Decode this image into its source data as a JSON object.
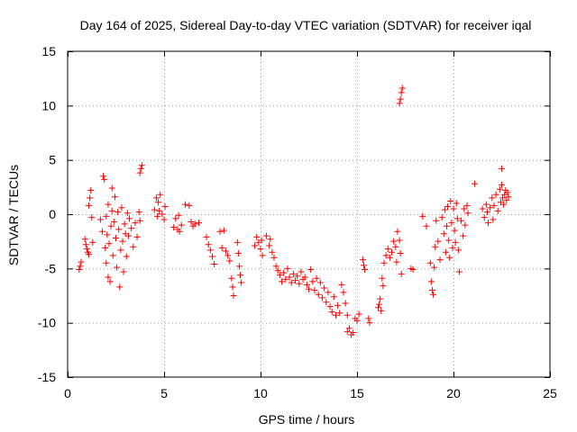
{
  "chart_data": {
    "type": "scatter",
    "title": "Day 164 of 2025, Sidereal Day-to-day VTEC variation (SDTVAR) for receiver iqal",
    "xlabel": "GPS time / hours",
    "ylabel": "SDTVAR / TECUs",
    "xlim": [
      0,
      25
    ],
    "ylim": [
      -15,
      15
    ],
    "xticks": [
      0,
      5,
      10,
      15,
      20,
      25
    ],
    "yticks": [
      -15,
      -10,
      -5,
      0,
      5,
      10,
      15
    ],
    "xtick_labels": [
      "0",
      "5",
      "10",
      "15",
      "20",
      "25"
    ],
    "ytick_labels": [
      "-15",
      "-10",
      "-5",
      "0",
      "5",
      "10",
      "15"
    ],
    "grid": true,
    "marker": "plus",
    "marker_color": "#ff0000",
    "series": [
      {
        "name": "SDTVAR",
        "points": [
          [
            0.6,
            -5.1
          ],
          [
            0.65,
            -4.8
          ],
          [
            0.7,
            -4.4
          ],
          [
            0.9,
            -2.3
          ],
          [
            0.95,
            -2.8
          ],
          [
            1.0,
            -3.2
          ],
          [
            1.05,
            -3.5
          ],
          [
            1.1,
            -3.7
          ],
          [
            1.1,
            0.8
          ],
          [
            1.15,
            1.5
          ],
          [
            1.2,
            2.2
          ],
          [
            1.25,
            -0.3
          ],
          [
            1.3,
            -2.6
          ],
          [
            1.7,
            -0.5
          ],
          [
            1.8,
            -1.6
          ],
          [
            1.85,
            3.5
          ],
          [
            1.9,
            3.2
          ],
          [
            1.95,
            -3.1
          ],
          [
            2.0,
            -4.5
          ],
          [
            2.0,
            -0.2
          ],
          [
            2.05,
            -1.9
          ],
          [
            2.1,
            -5.8
          ],
          [
            2.1,
            0.9
          ],
          [
            2.15,
            -2.7
          ],
          [
            2.2,
            -6.2
          ],
          [
            2.25,
            -1.1
          ],
          [
            2.3,
            2.4
          ],
          [
            2.3,
            0.3
          ],
          [
            2.35,
            -3.8
          ],
          [
            2.4,
            -0.7
          ],
          [
            2.45,
            1.6
          ],
          [
            2.5,
            -2.2
          ],
          [
            2.55,
            -4.9
          ],
          [
            2.6,
            0.2
          ],
          [
            2.65,
            -1.4
          ],
          [
            2.7,
            -6.7
          ],
          [
            2.75,
            -3.3
          ],
          [
            2.8,
            0.6
          ],
          [
            2.85,
            -2.5
          ],
          [
            2.9,
            -5.3
          ],
          [
            2.95,
            -0.9
          ],
          [
            3.0,
            -1.8
          ],
          [
            3.05,
            -3.9
          ],
          [
            3.1,
            0.1
          ],
          [
            3.15,
            -2.0
          ],
          [
            3.2,
            -0.4
          ],
          [
            3.3,
            -1.3
          ],
          [
            3.4,
            -3.0
          ],
          [
            3.5,
            -0.8
          ],
          [
            3.6,
            -2.1
          ],
          [
            3.7,
            0.2
          ],
          [
            3.75,
            -0.6
          ],
          [
            3.75,
            3.8
          ],
          [
            3.8,
            4.2
          ],
          [
            3.85,
            4.5
          ],
          [
            4.5,
            0.4
          ],
          [
            4.6,
            1.5
          ],
          [
            4.65,
            -0.2
          ],
          [
            4.7,
            1.1
          ],
          [
            4.75,
            0.3
          ],
          [
            4.8,
            1.8
          ],
          [
            4.9,
            0.0
          ],
          [
            5.0,
            -0.5
          ],
          [
            5.05,
            0.7
          ],
          [
            5.5,
            -1.2
          ],
          [
            5.6,
            -0.4
          ],
          [
            5.7,
            -1.4
          ],
          [
            5.75,
            -0.1
          ],
          [
            5.8,
            -1.6
          ],
          [
            5.9,
            -1.0
          ],
          [
            6.1,
            0.9
          ],
          [
            6.3,
            0.8
          ],
          [
            6.4,
            -0.7
          ],
          [
            6.5,
            -1.1
          ],
          [
            6.6,
            -0.9
          ],
          [
            6.8,
            -0.8
          ],
          [
            7.2,
            -2.1
          ],
          [
            7.3,
            -2.8
          ],
          [
            7.4,
            -3.3
          ],
          [
            7.5,
            -3.9
          ],
          [
            7.6,
            -4.6
          ],
          [
            7.9,
            -1.6
          ],
          [
            8.0,
            -3.1
          ],
          [
            8.1,
            -1.5
          ],
          [
            8.2,
            -3.4
          ],
          [
            8.3,
            -3.8
          ],
          [
            8.4,
            -4.3
          ],
          [
            8.5,
            -5.9
          ],
          [
            8.55,
            -6.7
          ],
          [
            8.6,
            -7.5
          ],
          [
            8.8,
            -2.6
          ],
          [
            8.85,
            -3.6
          ],
          [
            8.9,
            -4.8
          ],
          [
            8.95,
            -5.6
          ],
          [
            9.0,
            -6.3
          ],
          [
            9.7,
            -2.9
          ],
          [
            9.8,
            -2.1
          ],
          [
            9.9,
            -2.6
          ],
          [
            10.0,
            -3.2
          ],
          [
            10.05,
            -2.4
          ],
          [
            10.1,
            -3.8
          ],
          [
            10.3,
            -2.0
          ],
          [
            10.45,
            -2.9
          ],
          [
            10.5,
            -2.3
          ],
          [
            10.6,
            -3.5
          ],
          [
            10.7,
            -4.0
          ],
          [
            10.8,
            -4.8
          ],
          [
            10.9,
            -5.2
          ],
          [
            11.0,
            -5.6
          ],
          [
            11.1,
            -6.2
          ],
          [
            11.2,
            -5.4
          ],
          [
            11.3,
            -6.0
          ],
          [
            11.4,
            -5.0
          ],
          [
            11.5,
            -5.8
          ],
          [
            11.6,
            -6.3
          ],
          [
            11.7,
            -5.5
          ],
          [
            11.8,
            -6.1
          ],
          [
            11.9,
            -5.7
          ],
          [
            12.0,
            -6.4
          ],
          [
            12.1,
            -5.3
          ],
          [
            12.2,
            -6.0
          ],
          [
            12.3,
            -5.8
          ],
          [
            12.4,
            -6.5
          ],
          [
            12.5,
            -6.9
          ],
          [
            12.6,
            -5.1
          ],
          [
            12.7,
            -6.2
          ],
          [
            12.8,
            -7.0
          ],
          [
            12.9,
            -5.9
          ],
          [
            13.0,
            -7.4
          ],
          [
            13.1,
            -6.3
          ],
          [
            13.2,
            -7.7
          ],
          [
            13.3,
            -6.8
          ],
          [
            13.4,
            -8.1
          ],
          [
            13.5,
            -7.2
          ],
          [
            13.6,
            -8.5
          ],
          [
            13.7,
            -9.0
          ],
          [
            13.8,
            -7.6
          ],
          [
            13.9,
            -9.3
          ],
          [
            14.0,
            -8.4
          ],
          [
            14.1,
            -9.1
          ],
          [
            14.2,
            -6.5
          ],
          [
            14.3,
            -7.2
          ],
          [
            14.4,
            -8.2
          ],
          [
            14.5,
            -9.3
          ],
          [
            14.5,
            -10.8
          ],
          [
            14.6,
            -10.5
          ],
          [
            14.7,
            -11.1
          ],
          [
            14.8,
            -10.9
          ],
          [
            14.9,
            -9.6
          ],
          [
            15.0,
            -9.8
          ],
          [
            15.1,
            -9.2
          ],
          [
            15.3,
            -4.2
          ],
          [
            15.35,
            -4.7
          ],
          [
            15.4,
            -5.1
          ],
          [
            15.6,
            -9.6
          ],
          [
            15.65,
            -10.0
          ],
          [
            16.1,
            -8.6
          ],
          [
            16.15,
            -8.3
          ],
          [
            16.2,
            -7.8
          ],
          [
            16.25,
            -8.9
          ],
          [
            16.3,
            -5.9
          ],
          [
            16.35,
            -6.6
          ],
          [
            16.4,
            -4.5
          ],
          [
            16.5,
            -3.8
          ],
          [
            16.6,
            -3.2
          ],
          [
            16.7,
            -4.0
          ],
          [
            16.8,
            -3.5
          ],
          [
            16.9,
            -2.5
          ],
          [
            17.0,
            -3.0
          ],
          [
            17.05,
            -4.4
          ],
          [
            17.1,
            -1.6
          ],
          [
            17.2,
            -2.4
          ],
          [
            17.25,
            -3.6
          ],
          [
            17.3,
            -5.5
          ],
          [
            17.2,
            10.2
          ],
          [
            17.25,
            10.6
          ],
          [
            17.3,
            11.2
          ],
          [
            17.35,
            11.6
          ],
          [
            17.8,
            -5.0
          ],
          [
            17.9,
            -5.1
          ],
          [
            18.4,
            -0.2
          ],
          [
            18.6,
            -1.1
          ],
          [
            18.8,
            -4.5
          ],
          [
            18.85,
            -6.2
          ],
          [
            18.9,
            -7.0
          ],
          [
            18.95,
            -7.4
          ],
          [
            19.0,
            -4.9
          ],
          [
            19.05,
            -3.0
          ],
          [
            19.1,
            -0.6
          ],
          [
            19.2,
            -2.5
          ],
          [
            19.3,
            -4.2
          ],
          [
            19.4,
            -0.3
          ],
          [
            19.5,
            -1.8
          ],
          [
            19.55,
            0.4
          ],
          [
            19.6,
            -3.5
          ],
          [
            19.65,
            -1.1
          ],
          [
            19.7,
            0.7
          ],
          [
            19.75,
            -2.4
          ],
          [
            19.8,
            -4.0
          ],
          [
            19.85,
            1.2
          ],
          [
            19.9,
            -0.8
          ],
          [
            19.95,
            -3.1
          ],
          [
            20.0,
            0.5
          ],
          [
            20.05,
            -1.5
          ],
          [
            20.1,
            -2.6
          ],
          [
            20.15,
            1.0
          ],
          [
            20.2,
            -0.4
          ],
          [
            20.25,
            -3.3
          ],
          [
            20.3,
            -5.3
          ],
          [
            20.4,
            -0.6
          ],
          [
            20.5,
            -2.0
          ],
          [
            20.55,
            0.5
          ],
          [
            20.6,
            -1.0
          ],
          [
            20.7,
            0.8
          ],
          [
            20.75,
            0.1
          ],
          [
            21.1,
            2.8
          ],
          [
            21.5,
            0.5
          ],
          [
            21.6,
            -0.3
          ],
          [
            21.7,
            0.9
          ],
          [
            21.75,
            0.2
          ],
          [
            21.8,
            -0.8
          ],
          [
            21.9,
            0.6
          ],
          [
            22.0,
            1.5
          ],
          [
            22.05,
            -0.5
          ],
          [
            22.1,
            0.8
          ],
          [
            22.2,
            1.8
          ],
          [
            22.3,
            0.3
          ],
          [
            22.4,
            2.3
          ],
          [
            22.45,
            1.1
          ],
          [
            22.5,
            4.2
          ],
          [
            22.5,
            2.7
          ],
          [
            22.55,
            1.5
          ],
          [
            22.6,
            0.9
          ],
          [
            22.65,
            1.8
          ],
          [
            22.7,
            2.2
          ],
          [
            22.75,
            1.3
          ],
          [
            22.8,
            2.0
          ],
          [
            22.85,
            1.6
          ]
        ]
      }
    ]
  }
}
